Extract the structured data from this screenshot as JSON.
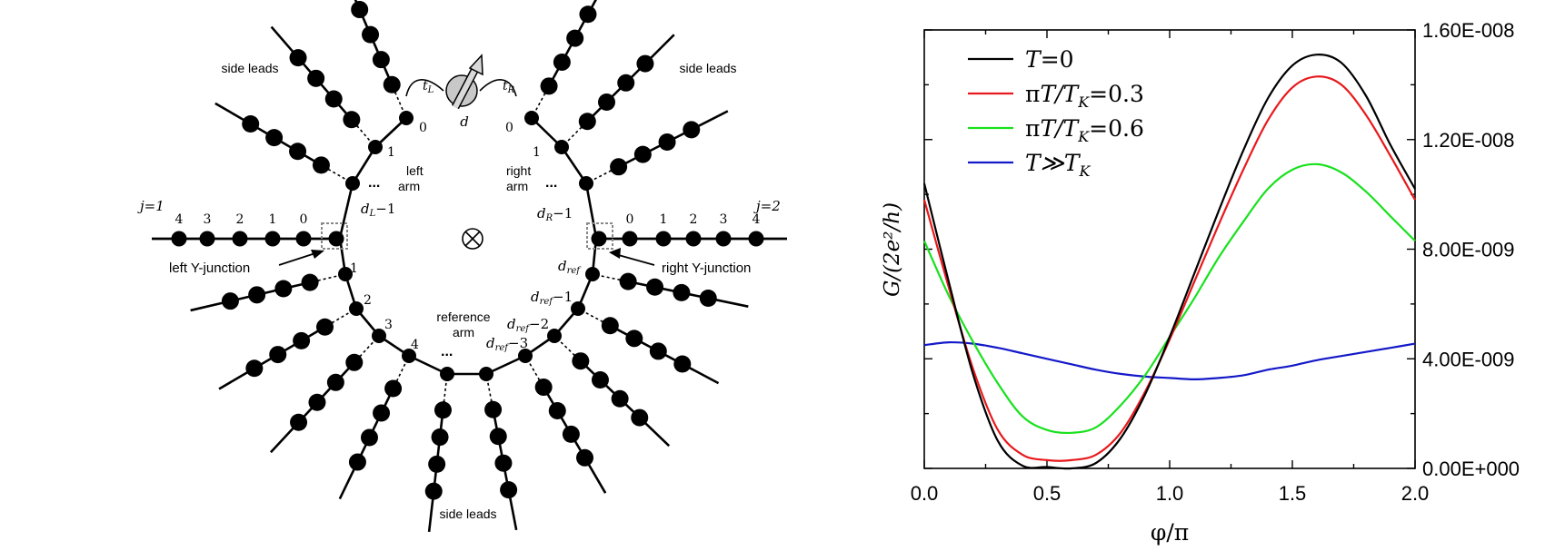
{
  "diagram": {
    "side_leads_label": "side leads",
    "left_arm_label": [
      "left",
      "arm"
    ],
    "right_arm_label": [
      "right",
      "arm"
    ],
    "reference_arm_label": [
      "reference",
      "arm"
    ],
    "ellipsis": "...",
    "left_y_junction_label": "left Y-junction",
    "right_y_junction_label": "right Y-junction",
    "lead1_label": "j=1",
    "lead2_label": "j=2",
    "lead_indices": [
      "4",
      "3",
      "2",
      "1",
      "0"
    ],
    "lead_indices_right": [
      "0",
      "1",
      "2",
      "3",
      "4"
    ],
    "dot_label": "d",
    "tL_label": "t",
    "tL_sub": "L",
    "tR_label": "t",
    "tR_sub": "R",
    "left_arm_sites": [
      "0",
      "1"
    ],
    "right_arm_sites": [
      "0",
      "1"
    ],
    "dL_label": "d",
    "dL_sub": "L",
    "dL_tail": "−1",
    "dR_label": "d",
    "dR_sub": "R",
    "dR_tail": "−1",
    "ref_sites": [
      "1",
      "2",
      "3",
      "4"
    ],
    "dref_labels": [
      {
        "base": "d",
        "sub": "ref",
        "tail": ""
      },
      {
        "base": "d",
        "sub": "ref",
        "tail": "−1"
      },
      {
        "base": "d",
        "sub": "ref",
        "tail": "−2"
      },
      {
        "base": "d",
        "sub": "ref",
        "tail": "−3"
      }
    ],
    "flux_symbol": "⊗",
    "icons": [
      "spin-arrow-icon",
      "flux-otimes-icon"
    ]
  },
  "chart_data": {
    "type": "line",
    "xlabel": "φ/π",
    "ylabel": "G/(2e²/h)",
    "xlim": [
      0.0,
      2.0
    ],
    "ylim": [
      0.0,
      1.6e-08
    ],
    "x_ticks": [
      "0.0",
      "0.5",
      "1.0",
      "1.5",
      "2.0"
    ],
    "y_ticks_right": [
      "0.00E+000",
      "4.00E-009",
      "8.00E-009",
      "1.20E-008",
      "1.60E-008"
    ],
    "legend_position": "top-left",
    "x": [
      0.0,
      0.1,
      0.2,
      0.3,
      0.4,
      0.5,
      0.6,
      0.7,
      0.8,
      0.9,
      1.0,
      1.1,
      1.2,
      1.3,
      1.4,
      1.5,
      1.6,
      1.7,
      1.8,
      1.9,
      2.0
    ],
    "series": [
      {
        "name": "T=0",
        "legend": {
          "pre": "",
          "main": "T",
          "sub": "",
          "post": "=0"
        },
        "color": "#000000",
        "values": [
          1.04e-08,
          6.8e-09,
          3.4e-09,
          1e-09,
          1e-10,
          5e-11,
          0.0,
          2e-10,
          1.1e-09,
          2.7e-09,
          4.8e-09,
          7.1e-09,
          9.4e-09,
          1.16e-08,
          1.35e-08,
          1.47e-08,
          1.51e-08,
          1.48e-08,
          1.36e-08,
          1.18e-08,
          1.02e-08
        ]
      },
      {
        "name": "πT/TK=0.3",
        "legend": {
          "pre": "π",
          "main": "T/T",
          "sub": "K",
          "post": "=0.3"
        },
        "color": "#e8191c",
        "values": [
          9.8e-09,
          6.6e-09,
          3.6e-09,
          1.4e-09,
          5e-10,
          3e-10,
          3e-10,
          5e-10,
          1.3e-09,
          2.8e-09,
          4.7e-09,
          6.8e-09,
          8.9e-09,
          1.09e-08,
          1.27e-08,
          1.39e-08,
          1.43e-08,
          1.4e-08,
          1.29e-08,
          1.14e-08,
          9.8e-09
        ]
      },
      {
        "name": "πT/TK=0.6",
        "legend": {
          "pre": "π",
          "main": "T/T",
          "sub": "K",
          "post": "=0.6"
        },
        "color": "#18e11d",
        "values": [
          8.3e-09,
          6.3e-09,
          4.6e-09,
          3.1e-09,
          1.9e-09,
          1.4e-09,
          1.3e-09,
          1.5e-09,
          2.3e-09,
          3.4e-09,
          4.8e-09,
          6.2e-09,
          7.7e-09,
          9e-09,
          1.02e-08,
          1.09e-08,
          1.11e-08,
          1.08e-08,
          1.01e-08,
          9.2e-09,
          8.3e-09
        ]
      },
      {
        "name": "T≫TK",
        "legend": {
          "pre": "",
          "main": "T≫T",
          "sub": "K",
          "post": ""
        },
        "color": "#1419c8",
        "values": [
          4.5e-09,
          4.6e-09,
          4.55e-09,
          4.4e-09,
          4.2e-09,
          4e-09,
          3.8e-09,
          3.6e-09,
          3.45e-09,
          3.35e-09,
          3.3e-09,
          3.25e-09,
          3.3e-09,
          3.4e-09,
          3.6e-09,
          3.75e-09,
          3.95e-09,
          4.1e-09,
          4.25e-09,
          4.4e-09,
          4.55e-09
        ]
      }
    ]
  }
}
